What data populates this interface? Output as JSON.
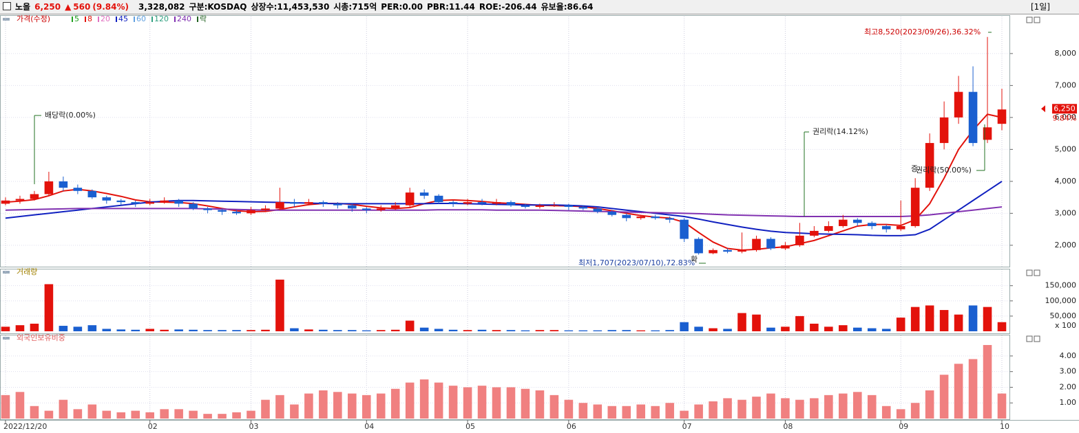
{
  "header": {
    "name": "노을",
    "price": "6,250",
    "arrow": "▲",
    "change": "560",
    "change_pct": "(9.84%)",
    "volume": "3,328,082",
    "market": "구분:KOSDAQ",
    "shares": "상장수:11,453,530",
    "cap": "시총:715억",
    "per": "PER:0.00",
    "pbr": "PBR:11.44",
    "roe": "ROE:-206.44",
    "reserve": "유보율:86.64",
    "period": "[1일]"
  },
  "chart_data": [
    {
      "type": "candlestick",
      "title": "가격(수정)",
      "legend": [
        {
          "name": "5",
          "color": "#20a020"
        },
        {
          "name": "8",
          "color": "#e3120b"
        },
        {
          "name": "20",
          "color": "#e070c0"
        },
        {
          "name": "45",
          "color": "#1020c0"
        },
        {
          "name": "60",
          "color": "#60a0e0"
        },
        {
          "name": "120",
          "color": "#30a080"
        },
        {
          "name": "240",
          "color": "#8030b0"
        },
        {
          "name": "락",
          "color": "#206020"
        }
      ],
      "categories": [
        "2022/12/20",
        null,
        null,
        null,
        null,
        null,
        null,
        null,
        null,
        null,
        "02",
        null,
        null,
        null,
        null,
        null,
        null,
        "03",
        null,
        null,
        null,
        null,
        null,
        null,
        null,
        "04",
        null,
        null,
        null,
        null,
        null,
        null,
        "05",
        null,
        null,
        null,
        null,
        null,
        null,
        "06",
        null,
        null,
        null,
        null,
        null,
        null,
        null,
        "07",
        null,
        null,
        null,
        null,
        null,
        null,
        "08",
        null,
        null,
        null,
        null,
        null,
        null,
        null,
        "09",
        null,
        null,
        null,
        null,
        null,
        null,
        "10"
      ],
      "open": [
        3300,
        3400,
        3450,
        3600,
        4000,
        3800,
        3700,
        3500,
        3400,
        3350,
        3300,
        3350,
        3400,
        3300,
        3150,
        3100,
        3050,
        3000,
        3100,
        3150,
        3350,
        3300,
        3350,
        3300,
        3250,
        3150,
        3100,
        3150,
        3250,
        3650,
        3550,
        3350,
        3300,
        3350,
        3300,
        3350,
        3250,
        3200,
        3250,
        3250,
        3200,
        3150,
        3050,
        2950,
        2850,
        2900,
        2850,
        2800,
        2200,
        1750,
        1850,
        1800,
        1850,
        2200,
        1900,
        2000,
        2300,
        2450,
        2600,
        2800,
        2700,
        2600,
        2500,
        2600,
        3800,
        5200,
        6000,
        6800,
        5300,
        5800
      ],
      "high": [
        3500,
        3550,
        3700,
        4300,
        4150,
        3900,
        3750,
        3550,
        3450,
        3400,
        3450,
        3500,
        3450,
        3350,
        3200,
        3150,
        3100,
        3200,
        3250,
        3800,
        3450,
        3450,
        3400,
        3350,
        3300,
        3200,
        3250,
        3350,
        3800,
        3750,
        3600,
        3400,
        3450,
        3450,
        3450,
        3400,
        3300,
        3300,
        3350,
        3300,
        3250,
        3200,
        3100,
        3000,
        2950,
        2950,
        2900,
        2850,
        2250,
        1900,
        1900,
        2400,
        2300,
        2250,
        2100,
        2700,
        2600,
        2750,
        2950,
        2850,
        2750,
        2650,
        3400,
        4100,
        5500,
        6500,
        7300,
        7600,
        8520,
        6900
      ],
      "low": [
        3250,
        3300,
        3400,
        3550,
        3700,
        3600,
        3450,
        3300,
        3250,
        3200,
        3250,
        3300,
        3200,
        3100,
        3000,
        2950,
        2950,
        2950,
        3050,
        3100,
        3200,
        3250,
        3200,
        3150,
        3050,
        3000,
        3050,
        3100,
        3200,
        3450,
        3300,
        3200,
        3250,
        3250,
        3250,
        3200,
        3150,
        3150,
        3200,
        3100,
        3100,
        3000,
        2900,
        2750,
        2800,
        2800,
        2700,
        2100,
        1707,
        1720,
        1750,
        1750,
        1800,
        1850,
        1850,
        1950,
        2250,
        2400,
        2550,
        2600,
        2500,
        2400,
        2450,
        2550,
        3700,
        5000,
        5800,
        5100,
        5200,
        5600
      ],
      "close": [
        3400,
        3450,
        3600,
        4000,
        3800,
        3700,
        3500,
        3400,
        3350,
        3300,
        3350,
        3400,
        3300,
        3150,
        3100,
        3050,
        3000,
        3100,
        3150,
        3350,
        3300,
        3350,
        3300,
        3250,
        3150,
        3100,
        3150,
        3250,
        3650,
        3550,
        3350,
        3300,
        3350,
        3300,
        3350,
        3250,
        3200,
        3250,
        3250,
        3200,
        3150,
        3050,
        2950,
        2850,
        2900,
        2850,
        2800,
        2200,
        1750,
        1850,
        1800,
        1850,
        2200,
        1900,
        2000,
        2300,
        2450,
        2600,
        2800,
        2700,
        2600,
        2500,
        2600,
        3800,
        5200,
        6000,
        6800,
        5200,
        5690,
        6250
      ],
      "up_color": "#e3120b",
      "down_color": "#1a5fd0",
      "series": [
        {
          "name": "8",
          "color": "#e3120b",
          "values": [
            3350,
            3380,
            3430,
            3550,
            3700,
            3750,
            3700,
            3620,
            3530,
            3420,
            3360,
            3350,
            3340,
            3300,
            3230,
            3150,
            3080,
            3050,
            3060,
            3120,
            3200,
            3270,
            3310,
            3310,
            3280,
            3220,
            3170,
            3150,
            3180,
            3300,
            3400,
            3420,
            3400,
            3370,
            3330,
            3310,
            3280,
            3250,
            3240,
            3230,
            3210,
            3150,
            3080,
            3000,
            2930,
            2880,
            2850,
            2720,
            2400,
            2100,
            1900,
            1850,
            1870,
            1920,
            1950,
            2050,
            2150,
            2300,
            2450,
            2600,
            2650,
            2650,
            2620,
            2800,
            3300,
            4100,
            5000,
            5600,
            6100,
            6000
          ]
        },
        {
          "name": "45",
          "color": "#1020c0",
          "values": [
            2850,
            2900,
            2950,
            3000,
            3050,
            3100,
            3150,
            3200,
            3250,
            3300,
            3350,
            3380,
            3400,
            3400,
            3390,
            3380,
            3370,
            3360,
            3350,
            3340,
            3330,
            3320,
            3310,
            3300,
            3300,
            3300,
            3300,
            3300,
            3300,
            3300,
            3310,
            3310,
            3300,
            3290,
            3280,
            3270,
            3260,
            3260,
            3260,
            3250,
            3230,
            3200,
            3150,
            3100,
            3050,
            3000,
            2950,
            2900,
            2820,
            2730,
            2650,
            2570,
            2500,
            2440,
            2400,
            2380,
            2360,
            2350,
            2340,
            2330,
            2310,
            2300,
            2300,
            2330,
            2500,
            2800,
            3100,
            3400,
            3700,
            4000
          ]
        },
        {
          "name": "240",
          "color": "#8030b0",
          "values": [
            3100,
            3110,
            3120,
            3130,
            3140,
            3150,
            3150,
            3150,
            3150,
            3150,
            3150,
            3150,
            3150,
            3150,
            3140,
            3130,
            3120,
            3110,
            3100,
            3100,
            3100,
            3100,
            3100,
            3100,
            3100,
            3100,
            3100,
            3100,
            3100,
            3100,
            3110,
            3110,
            3110,
            3110,
            3100,
            3100,
            3100,
            3100,
            3090,
            3080,
            3070,
            3060,
            3050,
            3040,
            3030,
            3020,
            3010,
            3000,
            2990,
            2970,
            2950,
            2940,
            2930,
            2920,
            2910,
            2900,
            2900,
            2900,
            2900,
            2900,
            2900,
            2900,
            2900,
            2920,
            2950,
            3000,
            3050,
            3100,
            3150,
            3200
          ]
        }
      ],
      "annotations": [
        "최고8,520(2023/09/26),36.32%",
        "최저1,707(2023/07/10),72.83%",
        "배당락(0.00%)",
        "권리락(14.12%)",
        "권리락(50.00%)",
        "증",
        "확"
      ],
      "last_label": "6,250",
      "pct_label": "9.84%",
      "ylim": [
        1330,
        9030
      ],
      "yticks": [
        {
          "value": 2000,
          "label": "2,000"
        },
        {
          "value": 3000,
          "label": "3,000"
        },
        {
          "value": 4000,
          "label": "4,000"
        },
        {
          "value": 5000,
          "label": "5,000"
        },
        {
          "value": 6000,
          "label": "6,000"
        },
        {
          "value": 7000,
          "label": "7,000"
        },
        {
          "value": 8000,
          "label": "8,000"
        }
      ],
      "grid": true
    },
    {
      "type": "bar",
      "title": "거래량",
      "unit": "x 100",
      "color_by": "candle",
      "values": [
        15000,
        20000,
        25000,
        155000,
        18000,
        15000,
        20000,
        8000,
        6000,
        5000,
        8000,
        5000,
        6000,
        5000,
        4000,
        4000,
        4000,
        4000,
        5000,
        170000,
        10000,
        6000,
        5000,
        4000,
        4000,
        3000,
        4000,
        5000,
        35000,
        12000,
        8000,
        5000,
        4000,
        5000,
        4000,
        4000,
        3000,
        4000,
        4000,
        3000,
        3000,
        3000,
        4000,
        4000,
        3000,
        3000,
        4000,
        30000,
        15000,
        10000,
        8000,
        60000,
        55000,
        12000,
        15000,
        50000,
        25000,
        15000,
        20000,
        12000,
        10000,
        8000,
        45000,
        80000,
        85000,
        70000,
        55000,
        85000,
        80000,
        30000
      ],
      "ylim": [
        0,
        190000
      ],
      "yticks": [
        {
          "value": 50000,
          "label": "50,000"
        },
        {
          "value": 100000,
          "label": "100,000"
        },
        {
          "value": 150000,
          "label": "150,000"
        }
      ],
      "grid": true
    },
    {
      "type": "bar",
      "title": "외국인보유비중",
      "color": "#f08080",
      "values": [
        1.5,
        1.7,
        0.8,
        0.5,
        1.2,
        0.6,
        0.9,
        0.5,
        0.4,
        0.5,
        0.4,
        0.6,
        0.6,
        0.5,
        0.3,
        0.3,
        0.4,
        0.5,
        1.2,
        1.5,
        0.9,
        1.6,
        1.8,
        1.7,
        1.6,
        1.5,
        1.6,
        1.9,
        2.3,
        2.5,
        2.3,
        2.1,
        2.0,
        2.1,
        2.0,
        2.0,
        1.9,
        1.8,
        1.5,
        1.2,
        1.0,
        0.9,
        0.8,
        0.8,
        0.9,
        0.8,
        1.0,
        0.5,
        0.9,
        1.1,
        1.3,
        1.2,
        1.4,
        1.6,
        1.3,
        1.2,
        1.3,
        1.5,
        1.6,
        1.7,
        1.5,
        0.8,
        0.6,
        1.0,
        1.8,
        2.8,
        3.5,
        3.8,
        4.7,
        1.6
      ],
      "ylim": [
        0,
        5.05
      ],
      "yticks": [
        {
          "value": 1,
          "label": "1.00"
        },
        {
          "value": 2,
          "label": "2.00"
        },
        {
          "value": 3,
          "label": "3.00"
        },
        {
          "value": 4,
          "label": "4.00"
        }
      ],
      "grid": true
    }
  ]
}
